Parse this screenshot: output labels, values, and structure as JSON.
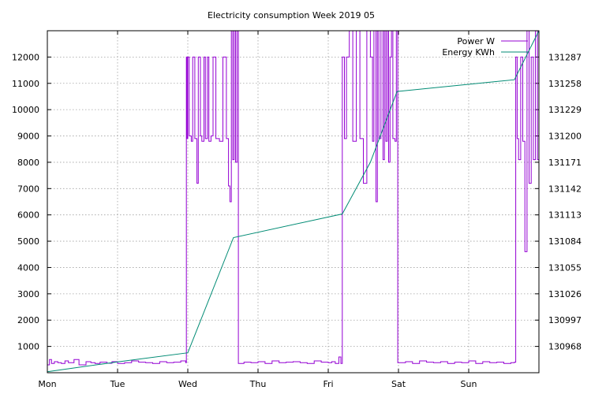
{
  "chart_data": {
    "type": "line",
    "title": "Electricity consumption Week 2019 05",
    "xlabel": "",
    "ylabel": "",
    "x_ticks": [
      "Mon",
      "Tue",
      "Wed",
      "Thu",
      "Fri",
      "Sat",
      "Sun"
    ],
    "xlim": [
      0,
      7
    ],
    "ylim": [
      0,
      13000
    ],
    "y_ticks": [
      1000,
      2000,
      3000,
      4000,
      5000,
      6000,
      7000,
      8000,
      9000,
      10000,
      11000,
      12000
    ],
    "y2lim": [
      130939,
      131316
    ],
    "y2_ticks": [
      130968,
      130997,
      131026,
      131055,
      131084,
      131113,
      131142,
      131171,
      131200,
      131229,
      131258,
      131287
    ],
    "grid": true,
    "legend_position": "top-right",
    "series": [
      {
        "name": "Power W",
        "axis": "left",
        "color": "#9400d3",
        "x": [
          0,
          0.03,
          0.06,
          0.1,
          0.15,
          0.2,
          0.25,
          0.3,
          0.38,
          0.45,
          0.55,
          0.62,
          0.68,
          0.75,
          0.85,
          0.92,
          1.0,
          1.1,
          1.2,
          1.3,
          1.4,
          1.5,
          1.6,
          1.7,
          1.8,
          1.9,
          1.97,
          1.98,
          1.99,
          2.0,
          2.02,
          2.05,
          2.07,
          2.1,
          2.13,
          2.15,
          2.18,
          2.2,
          2.23,
          2.25,
          2.28,
          2.3,
          2.33,
          2.36,
          2.4,
          2.45,
          2.5,
          2.55,
          2.58,
          2.6,
          2.62,
          2.64,
          2.66,
          2.68,
          2.7,
          2.72,
          2.8,
          2.9,
          3.0,
          3.1,
          3.2,
          3.3,
          3.4,
          3.5,
          3.6,
          3.7,
          3.8,
          3.9,
          4.0,
          4.05,
          4.1,
          4.15,
          4.18,
          4.2,
          4.23,
          4.26,
          4.3,
          4.35,
          4.4,
          4.45,
          4.5,
          4.55,
          4.6,
          4.63,
          4.65,
          4.68,
          4.7,
          4.72,
          4.75,
          4.78,
          4.8,
          4.82,
          4.84,
          4.86,
          4.88,
          4.9,
          4.92,
          4.95,
          4.97,
          4.99,
          5.1,
          5.2,
          5.3,
          5.4,
          5.5,
          5.6,
          5.7,
          5.8,
          5.9,
          6.0,
          6.1,
          6.2,
          6.3,
          6.4,
          6.5,
          6.6,
          6.65,
          6.67,
          6.69,
          6.71,
          6.74,
          6.77,
          6.8,
          6.83,
          6.86,
          6.89,
          6.92,
          6.95,
          6.98,
          7.0
        ],
        "values": [
          300,
          500,
          350,
          420,
          380,
          350,
          450,
          380,
          500,
          300,
          420,
          380,
          350,
          400,
          360,
          420,
          350,
          380,
          450,
          400,
          380,
          350,
          420,
          380,
          400,
          450,
          380,
          12000,
          8900,
          12000,
          9000,
          8800,
          12000,
          8900,
          7200,
          12000,
          9000,
          8800,
          12000,
          8900,
          12000,
          8800,
          9000,
          12000,
          8900,
          8800,
          12000,
          8900,
          7100,
          6500,
          13000,
          8100,
          13000,
          8000,
          13000,
          350,
          400,
          380,
          420,
          350,
          450,
          380,
          400,
          420,
          380,
          350,
          450,
          400,
          380,
          420,
          350,
          600,
          350,
          12000,
          8900,
          12000,
          13000,
          8800,
          13000,
          8900,
          7200,
          13000,
          12000,
          8800,
          13000,
          6500,
          13000,
          8900,
          13000,
          8100,
          13000,
          8800,
          13000,
          8000,
          12000,
          13000,
          8900,
          8800,
          13000,
          380,
          420,
          350,
          450,
          400,
          380,
          420,
          350,
          400,
          380,
          450,
          350,
          420,
          380,
          400,
          350,
          380,
          400,
          12000,
          8900,
          8100,
          12000,
          8800,
          4600,
          13000,
          7200,
          12000,
          8100,
          13000,
          8100,
          13000
        ]
      },
      {
        "name": "Energy KWh",
        "axis": "right",
        "color": "#008b74",
        "x": [
          0,
          1.0,
          2.0,
          2.65,
          4.2,
          4.6,
          4.98,
          6.65,
          7.0
        ],
        "values": [
          130940,
          130951,
          130961,
          131088,
          131114,
          131171,
          131249,
          131262,
          131316
        ]
      }
    ]
  }
}
